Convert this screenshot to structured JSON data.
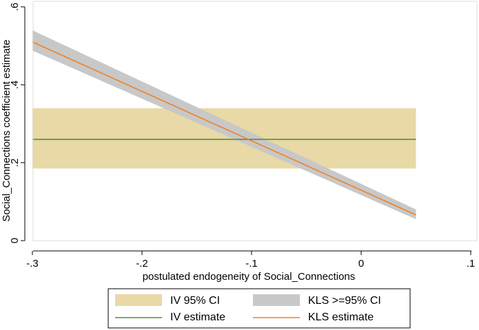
{
  "chart_data": {
    "type": "line",
    "title": "",
    "xlabel": "postulated endogeneity of Social_Connections",
    "ylabel": "Social_Connections coefficient estimate",
    "xlim": [
      -0.3,
      0.1
    ],
    "ylim": [
      0,
      0.6
    ],
    "x_ticks": [
      -0.3,
      -0.2,
      -0.1,
      0,
      0.1
    ],
    "x_tick_labels": [
      "-.3",
      "-.2",
      "-.1",
      "0",
      ".1"
    ],
    "y_ticks": [
      0,
      0.2,
      0.4,
      0.6
    ],
    "y_tick_labels": [
      "0",
      ".2",
      ".4",
      ".6"
    ],
    "series": [
      {
        "name": "IV 95% CI",
        "kind": "band",
        "x": [
          -0.3,
          0.05
        ],
        "lower": [
          0.185,
          0.185
        ],
        "upper": [
          0.34,
          0.34
        ],
        "color": "#e8d9a6"
      },
      {
        "name": "KLS >=95% CI",
        "kind": "band",
        "x": [
          -0.3,
          0.05
        ],
        "lower": [
          0.488,
          0.055
        ],
        "upper": [
          0.54,
          0.08
        ],
        "color": "#c8c8c8"
      },
      {
        "name": "IV estimate",
        "kind": "line",
        "x": [
          -0.3,
          0.05
        ],
        "y": [
          0.26,
          0.26
        ],
        "color": "#5a8a3c"
      },
      {
        "name": "KLS estimate",
        "kind": "line",
        "x": [
          -0.3,
          0.05
        ],
        "y": [
          0.51,
          0.066
        ],
        "color": "#f0821e"
      }
    ],
    "legend": {
      "placement": "bottom",
      "items": [
        {
          "label": "IV 95% CI",
          "symbol": "band",
          "color": "#e8d9a6"
        },
        {
          "label": "KLS >=95% CI",
          "symbol": "band",
          "color": "#c8c8c8"
        },
        {
          "label": "IV estimate",
          "symbol": "line",
          "color": "#5a8a3c"
        },
        {
          "label": "KLS estimate",
          "symbol": "line",
          "color": "#f0821e"
        }
      ]
    },
    "colors": {
      "axis": "#000000",
      "frame": "#dddddd",
      "background": "#ffffff"
    }
  }
}
